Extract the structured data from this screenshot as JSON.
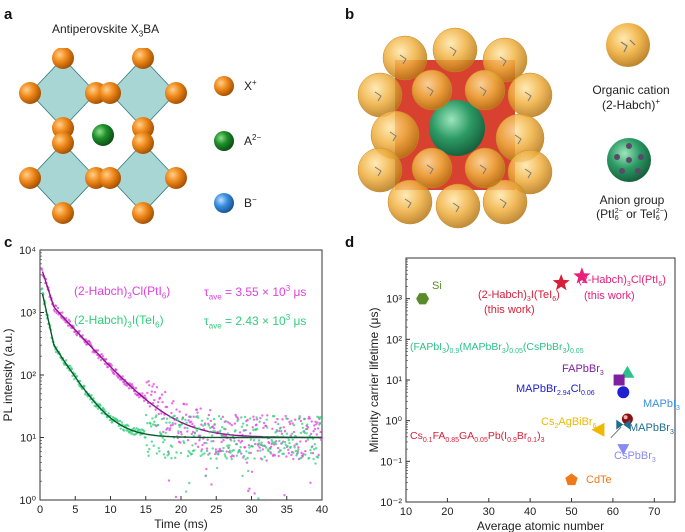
{
  "panels": {
    "a": {
      "label": "a",
      "title": "Antiperovskite X",
      "title_sub": "3",
      "title_tail": "BA",
      "legend": [
        {
          "main": "X",
          "sup": "+",
          "color": "#f08a1c"
        },
        {
          "main": "A",
          "sup": "2−",
          "color": "#1e8f2a"
        },
        {
          "main": "B",
          "sup": "−",
          "color": "#3a8fe0"
        }
      ]
    },
    "b": {
      "label": "b",
      "cation_line1": "Organic cation",
      "cation_line2": "(2-Habch)",
      "cation_sup": "+",
      "anion_line1": "Anion group",
      "anion_a": "(PtI",
      "anion_a_sub": "6",
      "anion_a_sup": "2−",
      "anion_or": " or TeI",
      "anion_b_sub": "6",
      "anion_b_sup": "2−",
      "anion_close": ")"
    },
    "c": {
      "label": "c"
    },
    "d": {
      "label": "d"
    }
  },
  "colors": {
    "orange": "#f08a1c",
    "green": "#1e8f2a",
    "blue": "#3a8fe0",
    "magenta": "#e040e0",
    "mint": "#2ecf7a",
    "red": "#d6203a"
  },
  "chart_data": [
    {
      "type": "scatter",
      "title": "",
      "xlabel": "Time (ms)",
      "ylabel": "PL intensity (a.u.)",
      "yscale": "log",
      "xlim": [
        0,
        40
      ],
      "ylim": [
        1,
        10000
      ],
      "xticks": [
        0,
        5,
        10,
        15,
        20,
        25,
        30,
        35,
        40
      ],
      "yticks": [
        "10⁰",
        "10¹",
        "10²",
        "10³",
        "10⁴"
      ],
      "series": [
        {
          "name": "(2-Habch)3Cl(PtI6)",
          "label_main": "(2-Habch)",
          "label_s1": "3",
          "label_mid": "Cl(PtI",
          "label_s2": "6",
          "label_tail": ")",
          "tau_text": "τ",
          "tau_sub": "ave",
          "tau_value": " = 3.55 × 10",
          "tau_exp": "3",
          "tau_unit": " μs",
          "tau_us": 3550,
          "peak": 6000,
          "color": "#e040e0"
        },
        {
          "name": "(2-Habch)3I(TeI6)",
          "label_main": "(2-Habch)",
          "label_s1": "3",
          "label_mid": "I(TeI",
          "label_s2": "6",
          "label_tail": ")",
          "tau_text": "τ",
          "tau_sub": "ave",
          "tau_value": " = 2.43 × 10",
          "tau_exp": "3",
          "tau_unit": " μs",
          "tau_us": 2430,
          "peak": 3000,
          "color": "#2ecf7a"
        }
      ]
    },
    {
      "type": "scatter",
      "title": "",
      "xlabel": "Average atomic number",
      "ylabel": "Minority carrier lifetime (μs)",
      "yscale": "log",
      "xlim": [
        10,
        75
      ],
      "ylim": [
        0.01,
        10000
      ],
      "xticks": [
        10,
        20,
        30,
        40,
        50,
        60,
        70
      ],
      "yticks": [
        "10⁻²",
        "10⁻¹",
        "10⁰",
        "10¹",
        "10²",
        "10³"
      ],
      "points": [
        {
          "name": "Si",
          "x": 14,
          "y": 1000,
          "marker": "hexagon",
          "color": "#5a8a2a"
        },
        {
          "name": "(2-Habch)3I(TeI6)",
          "x": 47.5,
          "y": 2430,
          "marker": "star",
          "color": "#d6203a"
        },
        {
          "name": "(2-Habch)3Cl(PtI6)",
          "x": 52.5,
          "y": 3550,
          "marker": "star",
          "color": "#e8207a"
        },
        {
          "name": "(FAPbI3)0.9(MAPbBr3)0.05(CsPbBr3)0.05",
          "x": 63.5,
          "y": 15,
          "marker": "triangle-up",
          "color": "#2ec08a"
        },
        {
          "name": "FAPbBr3",
          "x": 61.5,
          "y": 10,
          "marker": "square",
          "color": "#8020a0"
        },
        {
          "name": "MAPbBr2.94Cl0.06",
          "x": 62.5,
          "y": 5,
          "marker": "circle",
          "color": "#2020d0"
        },
        {
          "name": "MAPbI3",
          "x": 63.5,
          "y": 1.1,
          "marker": "sphere",
          "color": "#8a1010"
        },
        {
          "name": "MAPbBr3",
          "x": 62.5,
          "y": 0.8,
          "marker": "bowtie",
          "color": "#1f6f8f"
        },
        {
          "name": "Cs2AgBiBr6",
          "x": 56.5,
          "y": 0.6,
          "marker": "triangle-left",
          "color": "#f0b800"
        },
        {
          "name": "CsPbBr3",
          "x": 62.5,
          "y": 0.2,
          "marker": "triangle-down",
          "color": "#8a8af0"
        },
        {
          "name": "CdTe",
          "x": 50,
          "y": 0.035,
          "marker": "pentagon",
          "color": "#f07a18"
        }
      ],
      "labels": {
        "si": "Si",
        "te_main": "(2-Habch)",
        "te_s1": "3",
        "te_mid": "I(TeI",
        "te_s2": "6",
        "te_tail": ")",
        "te_work": "(this work)",
        "pt_main": "(2-Habch)",
        "pt_s1": "3",
        "pt_mid": "Cl(PtI",
        "pt_s2": "6",
        "pt_tail": ")",
        "pt_work": "(this work)",
        "fa_1": "(FAPbI",
        "fa_s1": "3",
        "fa_2": ")",
        "fa_s2": "0.9",
        "fa_3": "(MAPbBr",
        "fa_s3": "3",
        "fa_4": ")",
        "fa_s4": "0.05",
        "fa_5": "(CsPbBr",
        "fa_s5": "3",
        "fa_6": ")",
        "fa_s6": "0.05",
        "fab_1": "FAPbBr",
        "fab_s": "3",
        "mac_1": "MAPbBr",
        "mac_s1": "2.94",
        "mac_2": "Cl",
        "mac_s2": "0.06",
        "mai_1": "MAPbI",
        "mai_s": "3",
        "mab_1": "MAPbBr",
        "mab_s": "3",
        "cab_1": "Cs",
        "cab_s1": "2",
        "cab_2": "AgBiBr",
        "cab_s2": "6",
        "csf_1": "Cs",
        "csf_s1": "0.1",
        "csf_2": "FA",
        "csf_s2": "0.85",
        "csf_3": "GA",
        "csf_s3": "0.05",
        "csf_4": "Pb(I",
        "csf_s4": "0.9",
        "csf_5": "Br",
        "csf_s5": "0.1",
        "csf_6": ")",
        "csf_s6": "3",
        "csp_1": "CsPbBr",
        "csp_s": "3",
        "cdte": "CdTe"
      }
    }
  ]
}
